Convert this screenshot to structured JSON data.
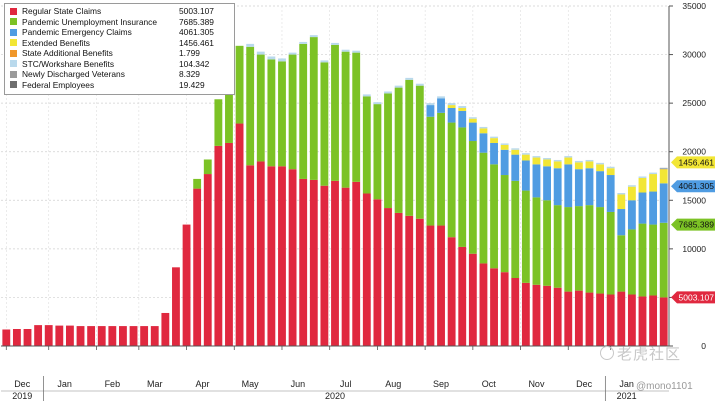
{
  "chart_data": {
    "type": "bar",
    "stacked": true,
    "title": "",
    "xlabel": "",
    "ylabel": "",
    "ylim": [
      0,
      35000
    ],
    "grid": true,
    "legend_position": "top-left",
    "y_ticks": [
      0,
      5000,
      10000,
      15000,
      20000,
      25000,
      30000,
      35000
    ],
    "month_labels": [
      {
        "label": "Dec",
        "week": 1.5
      },
      {
        "label": "Jan",
        "week": 5.5
      },
      {
        "label": "Feb",
        "week": 10
      },
      {
        "label": "Mar",
        "week": 14
      },
      {
        "label": "Apr",
        "week": 18.5
      },
      {
        "label": "May",
        "week": 23
      },
      {
        "label": "Jun",
        "week": 27.5
      },
      {
        "label": "Jul",
        "week": 32
      },
      {
        "label": "Aug",
        "week": 36.5
      },
      {
        "label": "Sep",
        "week": 41
      },
      {
        "label": "Oct",
        "week": 45.5
      },
      {
        "label": "Nov",
        "week": 50
      },
      {
        "label": "Dec",
        "week": 54.5
      },
      {
        "label": "Jan",
        "week": 58.5
      }
    ],
    "year_labels": [
      {
        "label": "2019",
        "week": 1.5
      },
      {
        "label": "2020",
        "week": 31
      },
      {
        "label": "2021",
        "week": 58.5
      }
    ],
    "year_separators": [
      3.5,
      56.5
    ],
    "series": [
      {
        "name": "Regular State Claims",
        "color": "#e0283f",
        "values": [
          1700,
          1750,
          1750,
          2150,
          2150,
          2100,
          2100,
          2050,
          2050,
          2050,
          2050,
          2050,
          2050,
          2050,
          2050,
          3400,
          8100,
          12500,
          16200,
          17700,
          20600,
          20900,
          22900,
          18600,
          19000,
          18500,
          18500,
          18200,
          17200,
          17100,
          16500,
          17000,
          16300,
          16900,
          15700,
          15100,
          14200,
          13700,
          13400,
          13100,
          12400,
          12400,
          11200,
          10200,
          9500,
          8500,
          8000,
          7600,
          7000,
          6500,
          6300,
          6200,
          6000,
          5600,
          5700,
          5500,
          5400,
          5300,
          5600,
          5300,
          5100,
          5200,
          5000
        ]
      },
      {
        "name": "Pandemic Unemployment Insurance",
        "color": "#7cc225",
        "values": [
          0,
          0,
          0,
          0,
          0,
          0,
          0,
          0,
          0,
          0,
          0,
          0,
          0,
          0,
          0,
          0,
          0,
          0,
          1000,
          1500,
          4800,
          6400,
          8000,
          12200,
          11000,
          11000,
          10800,
          11800,
          13900,
          14700,
          12700,
          14000,
          14000,
          13300,
          10000,
          9800,
          11800,
          12900,
          14000,
          13700,
          11200,
          11600,
          11800,
          12300,
          11600,
          11400,
          10700,
          10000,
          10000,
          9500,
          9000,
          8800,
          8500,
          8700,
          8700,
          9000,
          8900,
          8500,
          5800,
          6700,
          7500,
          7300,
          7685
        ]
      },
      {
        "name": "Pandemic Emergency Claims",
        "color": "#4f9ce2",
        "values": [
          0,
          0,
          0,
          0,
          0,
          0,
          0,
          0,
          0,
          0,
          0,
          0,
          0,
          0,
          0,
          0,
          0,
          0,
          0,
          0,
          0,
          0,
          0,
          0,
          0,
          0,
          0,
          0,
          0,
          0,
          0,
          0,
          0,
          0,
          0,
          0,
          0,
          0,
          0,
          0,
          1200,
          1500,
          1500,
          1700,
          1900,
          2000,
          2200,
          2600,
          2700,
          3100,
          3400,
          3500,
          3800,
          4400,
          3800,
          3800,
          3700,
          3800,
          2700,
          3000,
          3200,
          3400,
          4061
        ]
      },
      {
        "name": "Extended Benefits",
        "color": "#f2e635",
        "values": [
          0,
          0,
          0,
          0,
          0,
          0,
          0,
          0,
          0,
          0,
          0,
          0,
          0,
          0,
          0,
          0,
          0,
          0,
          0,
          0,
          0,
          0,
          0,
          0,
          0,
          0,
          0,
          0,
          0,
          0,
          0,
          0,
          0,
          0,
          0,
          0,
          0,
          0,
          0,
          0,
          0,
          0,
          300,
          300,
          400,
          500,
          500,
          500,
          500,
          600,
          700,
          700,
          700,
          700,
          700,
          700,
          700,
          700,
          1500,
          1400,
          1500,
          1800,
          1456
        ]
      },
      {
        "name": "State Additional Benefits",
        "color": "#f0972a",
        "values": [
          0,
          0,
          0,
          0,
          0,
          0,
          0,
          0,
          0,
          0,
          0,
          0,
          0,
          0,
          0,
          0,
          0,
          0,
          0,
          0,
          0,
          0,
          0,
          0,
          0,
          0,
          0,
          0,
          0,
          0,
          0,
          0,
          0,
          0,
          0,
          0,
          0,
          0,
          0,
          0,
          0,
          0,
          0,
          0,
          0,
          0,
          0,
          0,
          0,
          0,
          0,
          0,
          0,
          0,
          0,
          0,
          0,
          0,
          0,
          0,
          0,
          0,
          2
        ]
      },
      {
        "name": "STC/Workshare Benefits",
        "color": "#b9d9ec",
        "values": [
          0,
          0,
          0,
          0,
          0,
          0,
          0,
          0,
          0,
          0,
          0,
          0,
          0,
          0,
          0,
          0,
          0,
          0,
          0,
          0,
          0,
          100,
          0,
          300,
          300,
          300,
          300,
          200,
          200,
          200,
          200,
          200,
          200,
          200,
          200,
          200,
          200,
          200,
          200,
          200,
          200,
          200,
          200,
          200,
          150,
          150,
          150,
          150,
          150,
          150,
          150,
          150,
          150,
          150,
          150,
          150,
          150,
          150,
          150,
          150,
          150,
          150,
          104
        ]
      },
      {
        "name": "Newly Discharged Veterans",
        "color": "#9a9a9a",
        "values": [
          0,
          0,
          0,
          0,
          0,
          0,
          0,
          0,
          0,
          0,
          0,
          0,
          0,
          0,
          0,
          0,
          0,
          0,
          0,
          0,
          0,
          0,
          0,
          0,
          0,
          0,
          0,
          0,
          0,
          0,
          0,
          0,
          0,
          0,
          0,
          0,
          0,
          0,
          0,
          0,
          0,
          0,
          0,
          0,
          0,
          0,
          0,
          0,
          0,
          0,
          0,
          0,
          0,
          0,
          0,
          0,
          0,
          0,
          0,
          0,
          0,
          0,
          8
        ]
      },
      {
        "name": "Federal Employees",
        "color": "#6e6e6e",
        "values": [
          0,
          0,
          0,
          0,
          0,
          0,
          0,
          0,
          0,
          0,
          0,
          0,
          0,
          0,
          0,
          0,
          0,
          0,
          0,
          0,
          0,
          0,
          0,
          0,
          0,
          0,
          0,
          0,
          0,
          0,
          0,
          0,
          0,
          0,
          0,
          0,
          0,
          0,
          0,
          0,
          0,
          0,
          0,
          0,
          0,
          0,
          0,
          0,
          0,
          0,
          0,
          0,
          0,
          0,
          0,
          0,
          0,
          0,
          0,
          0,
          0,
          0,
          19
        ]
      }
    ],
    "legend": [
      {
        "name": "Regular State Claims",
        "value": "5003.107",
        "color": "#e0283f"
      },
      {
        "name": "Pandemic Unemployment Insurance",
        "value": "7685.389",
        "color": "#7cc225"
      },
      {
        "name": "Pandemic Emergency Claims",
        "value": "4061.305",
        "color": "#4f9ce2"
      },
      {
        "name": "Extended Benefits",
        "value": "1456.461",
        "color": "#f2e635"
      },
      {
        "name": "State Additional Benefits",
        "value": "1.799",
        "color": "#f0972a"
      },
      {
        "name": "STC/Workshare Benefits",
        "value": "104.342",
        "color": "#b9d9ec"
      },
      {
        "name": "Newly Discharged Veterans",
        "value": "8.329",
        "color": "#9a9a9a"
      },
      {
        "name": "Federal Employees",
        "value": "19.429",
        "color": "#6e6e6e"
      }
    ],
    "value_tags": [
      {
        "label": "1456.461",
        "value": 18900,
        "color": "#f2e635",
        "text_color": "#111"
      },
      {
        "label": "4061.305",
        "value": 16450,
        "color": "#4f9ce2",
        "text_color": "#111"
      },
      {
        "label": "7685.389",
        "value": 12500,
        "color": "#7cc225",
        "text_color": "#111"
      },
      {
        "label": "5003.107",
        "value": 5000,
        "color": "#e0283f",
        "text_color": "#fff"
      }
    ]
  },
  "watermark": {
    "text": "老虎社区",
    "handle": "@mono1101"
  }
}
